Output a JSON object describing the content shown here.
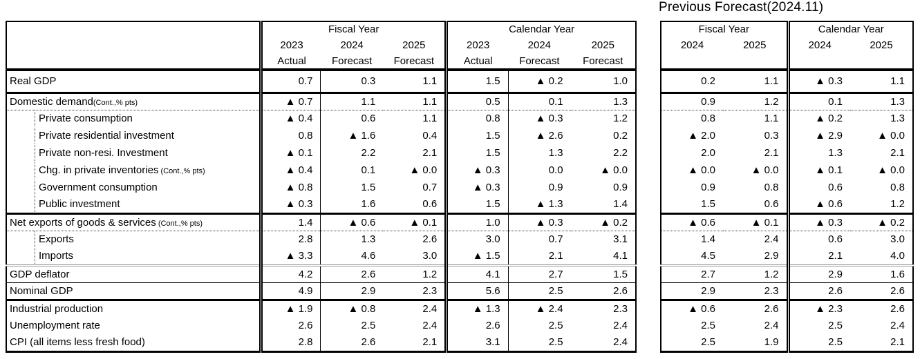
{
  "chart_data": {
    "type": "table",
    "title": "Previous Forecast(2024.11)",
    "header": {
      "fiscal_year_label": "Fiscal Year",
      "calendar_year_label": "Calendar Year",
      "current_years": [
        "2023",
        "2024",
        "2025"
      ],
      "current_subs": [
        "Actual",
        "Forecast",
        "Forecast"
      ],
      "previous_years": [
        "2024",
        "2025"
      ]
    },
    "rows": [
      {
        "label": "Real GDP",
        "note": "",
        "indent": false,
        "sep": "none",
        "fiscal_year": [
          "0.7",
          "0.3",
          "1.1"
        ],
        "calendar_year": [
          "1.5",
          "▲ 0.2",
          "1.0"
        ],
        "prev_fiscal_year": [
          "0.2",
          "1.1"
        ],
        "prev_calendar_year": [
          "▲ 0.3",
          "1.1"
        ]
      },
      {
        "label": "Domestic demand",
        "note": "(Cont.,% pts)",
        "indent": false,
        "sep": "thick",
        "fiscal_year": [
          "▲ 0.7",
          "1.1",
          "1.1"
        ],
        "calendar_year": [
          "0.5",
          "0.1",
          "1.3"
        ],
        "prev_fiscal_year": [
          "0.9",
          "1.2"
        ],
        "prev_calendar_year": [
          "0.1",
          "1.3"
        ]
      },
      {
        "label": "Private consumption",
        "note": "",
        "indent": true,
        "sep": "dotted",
        "fiscal_year": [
          "▲ 0.4",
          "0.6",
          "1.1"
        ],
        "calendar_year": [
          "0.8",
          "▲ 0.3",
          "1.2"
        ],
        "prev_fiscal_year": [
          "0.8",
          "1.1"
        ],
        "prev_calendar_year": [
          "▲ 0.2",
          "1.3"
        ]
      },
      {
        "label": "Private residential investment",
        "note": "",
        "indent": true,
        "sep": "none",
        "fiscal_year": [
          "0.8",
          "▲ 1.6",
          "0.4"
        ],
        "calendar_year": [
          "1.5",
          "▲ 2.6",
          "0.2"
        ],
        "prev_fiscal_year": [
          "▲ 2.0",
          "0.3"
        ],
        "prev_calendar_year": [
          "▲ 2.9",
          "▲ 0.0"
        ]
      },
      {
        "label": "Private non-resi. Investment",
        "note": "",
        "indent": true,
        "sep": "none",
        "fiscal_year": [
          "▲ 0.1",
          "2.2",
          "2.1"
        ],
        "calendar_year": [
          "1.5",
          "1.3",
          "2.2"
        ],
        "prev_fiscal_year": [
          "2.0",
          "2.1"
        ],
        "prev_calendar_year": [
          "1.3",
          "2.1"
        ]
      },
      {
        "label": "Chg. in private inventories",
        "note": " (Cont.,% pts)",
        "indent": true,
        "sep": "none",
        "fiscal_year": [
          "▲ 0.4",
          "0.1",
          "▲ 0.0"
        ],
        "calendar_year": [
          "▲ 0.3",
          "0.0",
          "▲ 0.0"
        ],
        "prev_fiscal_year": [
          "▲ 0.0",
          "▲ 0.0"
        ],
        "prev_calendar_year": [
          "▲ 0.1",
          "▲ 0.0"
        ]
      },
      {
        "label": "Government consumption",
        "note": "",
        "indent": true,
        "sep": "none",
        "fiscal_year": [
          "▲ 0.8",
          "1.5",
          "0.7"
        ],
        "calendar_year": [
          "▲ 0.3",
          "0.9",
          "0.9"
        ],
        "prev_fiscal_year": [
          "0.9",
          "0.8"
        ],
        "prev_calendar_year": [
          "0.6",
          "0.8"
        ]
      },
      {
        "label": "Public investment",
        "note": "",
        "indent": true,
        "sep": "none",
        "fiscal_year": [
          "▲ 0.3",
          "1.6",
          "0.6"
        ],
        "calendar_year": [
          "1.5",
          "▲ 1.3",
          "1.4"
        ],
        "prev_fiscal_year": [
          "1.5",
          "0.6"
        ],
        "prev_calendar_year": [
          "▲ 0.6",
          "1.2"
        ]
      },
      {
        "label": "Net exports of goods & services",
        "note": " (Cont.,% pts)",
        "indent": false,
        "sep": "thick",
        "fiscal_year": [
          "1.4",
          "▲ 0.6",
          "▲ 0.1"
        ],
        "calendar_year": [
          "1.0",
          "▲ 0.3",
          "▲ 0.2"
        ],
        "prev_fiscal_year": [
          "▲ 0.6",
          "▲ 0.1"
        ],
        "prev_calendar_year": [
          "▲ 0.3",
          "▲ 0.2"
        ]
      },
      {
        "label": "Exports",
        "note": "",
        "indent": true,
        "sep": "dotted",
        "fiscal_year": [
          "2.8",
          "1.3",
          "2.6"
        ],
        "calendar_year": [
          "3.0",
          "0.7",
          "3.1"
        ],
        "prev_fiscal_year": [
          "1.4",
          "2.4"
        ],
        "prev_calendar_year": [
          "0.6",
          "3.0"
        ]
      },
      {
        "label": "Imports",
        "note": "",
        "indent": true,
        "sep": "none",
        "fiscal_year": [
          "▲ 3.3",
          "4.6",
          "3.0"
        ],
        "calendar_year": [
          "▲ 1.5",
          "2.1",
          "4.1"
        ],
        "prev_fiscal_year": [
          "4.5",
          "2.9"
        ],
        "prev_calendar_year": [
          "2.1",
          "4.0"
        ]
      },
      {
        "label": "GDP deflator",
        "note": "",
        "indent": false,
        "sep": "gray",
        "fiscal_year": [
          "4.2",
          "2.6",
          "1.2"
        ],
        "calendar_year": [
          "4.1",
          "2.7",
          "1.5"
        ],
        "prev_fiscal_year": [
          "2.7",
          "1.2"
        ],
        "prev_calendar_year": [
          "2.9",
          "1.6"
        ]
      },
      {
        "label": "Nominal GDP",
        "note": "",
        "indent": false,
        "sep": "thin",
        "fiscal_year": [
          "4.9",
          "2.9",
          "2.3"
        ],
        "calendar_year": [
          "5.6",
          "2.5",
          "2.6"
        ],
        "prev_fiscal_year": [
          "2.9",
          "2.3"
        ],
        "prev_calendar_year": [
          "2.6",
          "2.6"
        ]
      },
      {
        "label": "Industrial production",
        "note": "",
        "indent": false,
        "sep": "thick",
        "fiscal_year": [
          "▲ 1.9",
          "▲ 0.8",
          "2.4"
        ],
        "calendar_year": [
          "▲ 1.3",
          "▲ 2.4",
          "2.3"
        ],
        "prev_fiscal_year": [
          "▲ 0.6",
          "2.6"
        ],
        "prev_calendar_year": [
          "▲ 2.3",
          "2.6"
        ]
      },
      {
        "label": "Unemployment rate",
        "note": "",
        "indent": false,
        "sep": "none",
        "fiscal_year": [
          "2.6",
          "2.5",
          "2.4"
        ],
        "calendar_year": [
          "2.6",
          "2.5",
          "2.4"
        ],
        "prev_fiscal_year": [
          "2.5",
          "2.4"
        ],
        "prev_calendar_year": [
          "2.5",
          "2.4"
        ]
      },
      {
        "label": "CPI (all items less fresh food)",
        "note": "",
        "indent": false,
        "sep": "none",
        "fiscal_year": [
          "2.8",
          "2.6",
          "2.1"
        ],
        "calendar_year": [
          "3.1",
          "2.5",
          "2.4"
        ],
        "prev_fiscal_year": [
          "2.5",
          "1.9"
        ],
        "prev_calendar_year": [
          "2.5",
          "2.1"
        ]
      }
    ]
  }
}
